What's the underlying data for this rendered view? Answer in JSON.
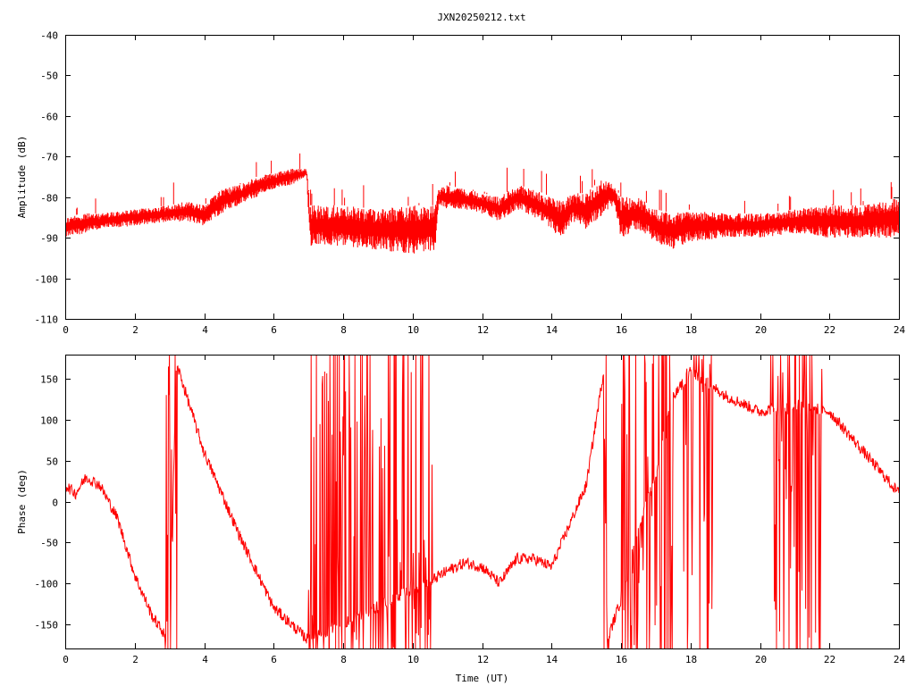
{
  "title": "JXN20250212.txt",
  "series_color": "#ff0000",
  "chart_data": [
    {
      "type": "line",
      "ylabel": "Amplitude (dB)",
      "xlabel": "",
      "xlim": [
        0,
        24
      ],
      "ylim": [
        -110,
        -40
      ],
      "xticks": [
        0,
        2,
        4,
        6,
        8,
        10,
        12,
        14,
        16,
        18,
        20,
        22,
        24
      ],
      "yticks": [
        -110,
        -100,
        -90,
        -80,
        -70,
        -60,
        -50,
        -40
      ],
      "envelope": {
        "x": [
          0,
          0.5,
          1,
          2,
          3,
          3.5,
          4,
          4.5,
          5,
          5.5,
          6,
          6.5,
          6.95,
          7.05,
          8,
          9,
          10,
          10.65,
          10.75,
          11,
          11.5,
          12,
          12.5,
          13,
          13.5,
          14,
          14.3,
          14.6,
          15,
          15.5,
          15.8,
          16,
          16.5,
          17,
          17.5,
          18,
          19,
          20,
          21,
          22,
          23,
          24
        ],
        "low": [
          -90,
          -89,
          -88,
          -87,
          -86,
          -86,
          -87,
          -84,
          -82,
          -80,
          -78,
          -77,
          -75,
          -92,
          -92,
          -93,
          -94,
          -93,
          -82,
          -83,
          -83,
          -84,
          -86,
          -83,
          -85,
          -88,
          -91,
          -86,
          -88,
          -84,
          -82,
          -90,
          -88,
          -91,
          -93,
          -91,
          -90,
          -90,
          -89,
          -90,
          -90,
          -90
        ],
        "high": [
          -85,
          -84,
          -84,
          -83,
          -82,
          -81,
          -82,
          -78,
          -77,
          -75,
          -74,
          -73,
          -73,
          -82,
          -82,
          -83,
          -82,
          -82,
          -78,
          -77,
          -78,
          -79,
          -80,
          -77,
          -78,
          -80,
          -81,
          -79,
          -79,
          -75,
          -77,
          -80,
          -80,
          -83,
          -84,
          -83,
          -84,
          -84,
          -83,
          -82,
          -82,
          -80
        ]
      }
    },
    {
      "type": "line",
      "ylabel": "Phase (deg)",
      "xlabel": "Time (UT)",
      "xlim": [
        0,
        24
      ],
      "ylim": [
        -180,
        180
      ],
      "xticks": [
        0,
        2,
        4,
        6,
        8,
        10,
        12,
        14,
        16,
        18,
        20,
        22,
        24
      ],
      "yticks": [
        -150,
        -100,
        -50,
        0,
        50,
        100,
        150
      ],
      "trend": {
        "x": [
          0,
          0.3,
          0.6,
          1,
          1.5,
          2,
          2.5,
          2.9,
          3.0,
          3.2,
          4,
          5,
          6,
          6.5,
          7.0,
          10.6,
          11,
          11.5,
          12,
          12.5,
          13,
          13.5,
          14,
          14.5,
          15,
          15.5,
          15.6,
          16,
          16.5,
          17,
          17.4,
          18,
          19,
          20,
          21,
          22,
          23,
          24
        ],
        "y": [
          20,
          10,
          30,
          20,
          -20,
          -90,
          -140,
          -165,
          -178,
          170,
          60,
          -40,
          -130,
          -150,
          -170,
          -95,
          -85,
          -75,
          -80,
          -100,
          -70,
          -70,
          -80,
          -30,
          20,
          160,
          -170,
          -120,
          -30,
          30,
          120,
          160,
          130,
          110,
          120,
          110,
          60,
          10
        ]
      },
      "wrap_bands": [
        [
          2.85,
          3.25
        ],
        [
          7.0,
          10.6
        ],
        [
          15.5,
          15.65
        ],
        [
          16.0,
          17.5
        ],
        [
          17.8,
          18.7
        ],
        [
          20.3,
          21.8
        ]
      ]
    }
  ]
}
